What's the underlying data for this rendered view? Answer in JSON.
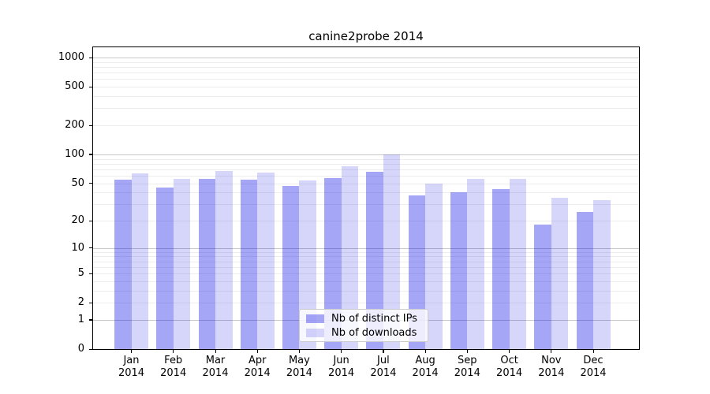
{
  "figure": {
    "title": "canine2probe 2014"
  },
  "legend": {
    "position": "lower center"
  },
  "chart_data": {
    "type": "bar",
    "title": "canine2probe 2014",
    "categories": [
      "Jan 2014",
      "Feb 2014",
      "Mar 2014",
      "Apr 2014",
      "May 2014",
      "Jun 2014",
      "Jul 2014",
      "Aug 2014",
      "Sep 2014",
      "Oct 2014",
      "Nov 2014",
      "Dec 2014"
    ],
    "series": [
      {
        "name": "Nb of distinct IPs",
        "color": "rgba(0,0,230,0.35)",
        "values": [
          54,
          45,
          56,
          54,
          47,
          57,
          66,
          37,
          40,
          43,
          18,
          25
        ]
      },
      {
        "name": "Nb of downloads",
        "color": "rgba(0,0,230,0.16)",
        "values": [
          63,
          55,
          67,
          65,
          53,
          75,
          100,
          50,
          55,
          56,
          35,
          33
        ]
      }
    ],
    "xlabel": "",
    "ylabel": "",
    "y_ticks": [
      0,
      1,
      2,
      5,
      10,
      20,
      50,
      100,
      200,
      500,
      1000
    ],
    "y_scale": "log10(value+1)",
    "ylim": [
      0,
      1280
    ],
    "grid": true,
    "legend_position": "lower center"
  }
}
